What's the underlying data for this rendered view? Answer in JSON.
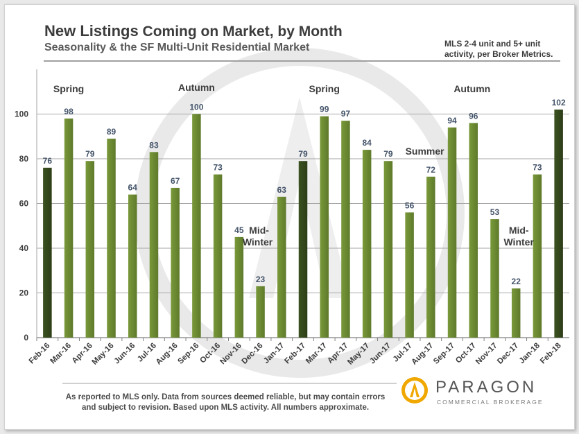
{
  "title_bold": "New Listings",
  "title_rest": " Coming on Market, by Month",
  "subtitle": "Seasonality & the SF Multi-Unit  Residential Market",
  "source_note_line1": "MLS 2-4 unit and 5+ unit",
  "source_note_line2": "activity, per Broker Metrics.",
  "footer_line1": "As  reported to MLS only. Data from sources  deemed reliable, but may contain errors",
  "footer_line2": "and subject to revision. Based upon MLS activity. All numbers approximate.",
  "brand": {
    "name": "PARAGON",
    "tagline": "COMMERCIAL BROKERAGE"
  },
  "colors": {
    "bar_light": "#79993a",
    "bar_dark": "#3b5220",
    "grid": "#a6a6a6",
    "label": "#44546a",
    "watermark": "#cfcfcf",
    "accent": "#f0a800"
  },
  "chart_data": {
    "type": "bar",
    "categories": [
      "Feb-16",
      "Mar-16",
      "Apr-16",
      "May-16",
      "Jun-16",
      "Jul-16",
      "Aug-16",
      "Sep-16",
      "Oct-16",
      "Nov-16",
      "Dec-16",
      "Jan-17",
      "Feb-17",
      "Mar-17",
      "Apr-17",
      "May-17",
      "Jun-17",
      "Jul-17",
      "Aug-17",
      "Sep-17",
      "Oct-17",
      "Nov-17",
      "Dec-17",
      "Jan-18",
      "Feb-18"
    ],
    "values": [
      76,
      98,
      79,
      89,
      64,
      83,
      67,
      100,
      73,
      45,
      23,
      63,
      79,
      99,
      97,
      84,
      79,
      56,
      72,
      94,
      96,
      53,
      22,
      73,
      102
    ],
    "highlight": [
      "Feb-16",
      "Feb-17",
      "Feb-18"
    ],
    "ylim": [
      0,
      120
    ],
    "yticks": [
      0,
      20,
      40,
      60,
      80,
      100
    ],
    "grid": true,
    "annotations": [
      {
        "text": "Spring",
        "near": "Mar-16"
      },
      {
        "text": "Autumn",
        "near": "Sep-16"
      },
      {
        "text": "Mid-",
        "near": "Dec-16"
      },
      {
        "text": "Winter",
        "near": "Dec-16"
      },
      {
        "text": "Spring",
        "near": "Mar-17"
      },
      {
        "text": "Summer",
        "near": "Jul-17"
      },
      {
        "text": "Autumn",
        "near": "Oct-17"
      },
      {
        "text": "Mid-",
        "near": "Dec-17"
      },
      {
        "text": "Winter",
        "near": "Dec-17"
      }
    ]
  }
}
